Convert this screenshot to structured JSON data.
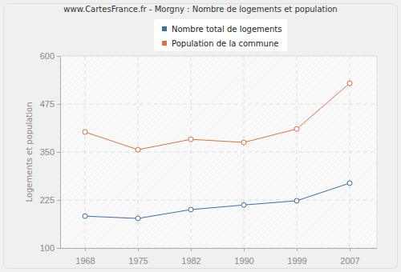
{
  "chart_data": {
    "type": "line",
    "title": "www.CartesFrance.fr - Morgny : Nombre de logements et population",
    "y_label": "Logements et population",
    "categories": [
      "1968",
      "1975",
      "1982",
      "1990",
      "1999",
      "2007"
    ],
    "series": [
      {
        "name": "Nombre total de logements",
        "color": "#3e6e9e",
        "values": [
          183,
          177,
          200,
          212,
          223,
          269
        ]
      },
      {
        "name": "Population de la commune",
        "color": "#e0703c",
        "values": [
          402,
          356,
          383,
          375,
          410,
          529
        ]
      }
    ],
    "ylim": [
      100,
      600
    ],
    "yticks": [
      100,
      225,
      350,
      475,
      600
    ],
    "grid": true,
    "legend": "top",
    "marker": "circle"
  }
}
